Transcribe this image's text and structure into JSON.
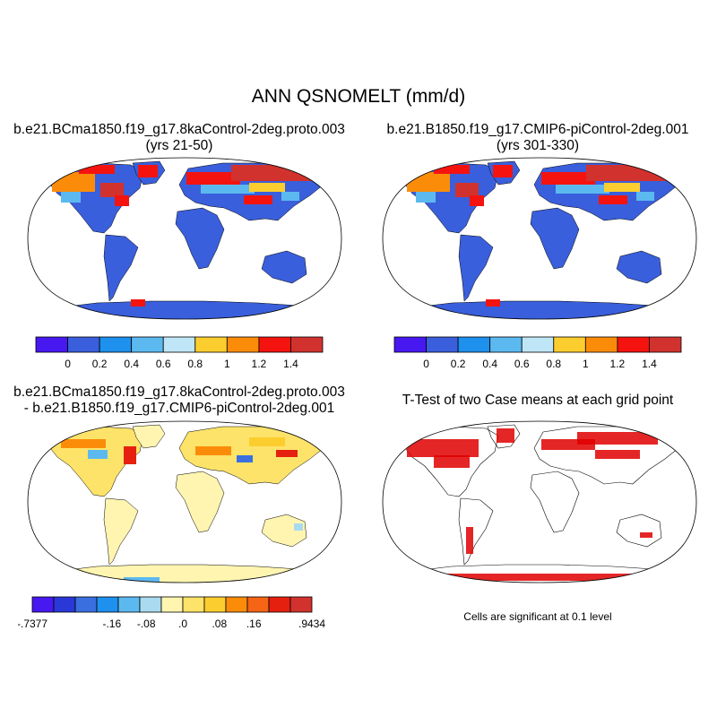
{
  "title": "ANN QSNOMELT (mm/d)",
  "panels": [
    {
      "id": "case1",
      "title_lines": [
        "b.e21.BCma1850.f19_g17.8kaControl-2deg.proto.003",
        "(yrs 21-50)"
      ],
      "colors": [
        "#4718f0",
        "#3a5fdc",
        "#1e90ee",
        "#5cb9f0",
        "#bfe6f6",
        "#fccd2e",
        "#fb8c0a",
        "#f5130f",
        "#d1322e"
      ],
      "labels": [
        "0",
        "0.2",
        "0.4",
        "0.6",
        "0.8",
        "1",
        "1.2",
        "1.4"
      ]
    },
    {
      "id": "case2",
      "title_lines": [
        "b.e21.B1850.f19_g17.CMIP6-piControl-2deg.001",
        "(yrs 301-330)"
      ],
      "colors": [
        "#4718f0",
        "#3a5fdc",
        "#1e90ee",
        "#5cb9f0",
        "#bfe6f6",
        "#fccd2e",
        "#fb8c0a",
        "#f5130f",
        "#d1322e"
      ],
      "labels": [
        "0",
        "0.2",
        "0.4",
        "0.6",
        "0.8",
        "1",
        "1.2",
        "1.4"
      ]
    },
    {
      "id": "diff",
      "title_lines": [
        "b.e21.BCma1850.f19_g17.8kaControl-2deg.proto.003",
        "- b.e21.B1850.f19_g17.CMIP6-piControl-2deg.001"
      ],
      "colors": [
        "#4718f0",
        "#2a38d8",
        "#3a6fe0",
        "#1e90ee",
        "#5cb9f0",
        "#a9daf0",
        "#fff5b0",
        "#fde36a",
        "#fccd2e",
        "#fb8c0a",
        "#f56515",
        "#e6200f",
        "#d1322e"
      ],
      "labels": [
        "-.7377",
        "-.16",
        "-.08",
        ".0",
        ".08",
        ".16",
        ".9434"
      ]
    },
    {
      "id": "ttest",
      "title_lines": [
        "T-Test of two Case means at each grid point"
      ],
      "note": "Cells are significant at 0.1 level"
    }
  ]
}
